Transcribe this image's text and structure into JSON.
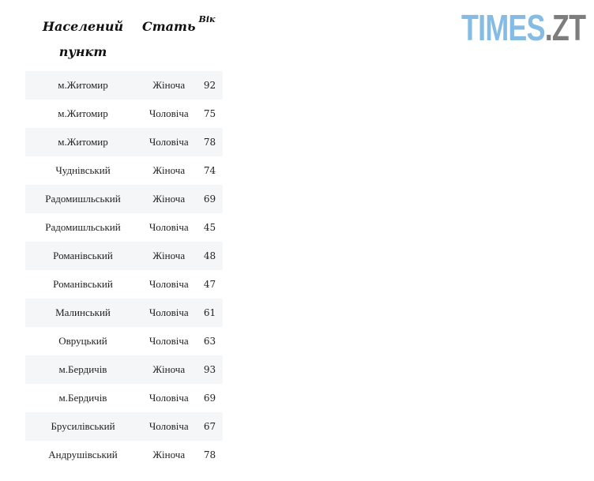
{
  "logo": {
    "part1": "TIMES",
    "part2": ".ZT",
    "colors": {
      "part1": "#86bbe3",
      "part2": "#7d7d7d"
    }
  },
  "table": {
    "headers": [
      "Населений пункт",
      "Стать",
      "Вік"
    ],
    "rows": [
      [
        "м.Житомир",
        "Жіноча",
        "92"
      ],
      [
        "м.Житомир",
        "Чоловіча",
        "75"
      ],
      [
        "м.Житомир",
        "Чоловіча",
        "78"
      ],
      [
        "Чуднівський",
        "Жіноча",
        "74"
      ],
      [
        "Радомишльський",
        "Жіноча",
        "69"
      ],
      [
        "Радомишльський",
        "Чоловіча",
        "45"
      ],
      [
        "Романівський",
        "Жіноча",
        "48"
      ],
      [
        "Романівський",
        "Чоловіча",
        "47"
      ],
      [
        "Малинський",
        "Чоловіча",
        "61"
      ],
      [
        "Овруцький",
        "Чоловіча",
        "63"
      ],
      [
        "м.Бердичів",
        "Жіноча",
        "93"
      ],
      [
        "м.Бердичів",
        "Чоловіча",
        "69"
      ],
      [
        "Брусилівський",
        "Чоловіча",
        "67"
      ],
      [
        "Андрушівський",
        "Жіноча",
        "78"
      ]
    ]
  }
}
